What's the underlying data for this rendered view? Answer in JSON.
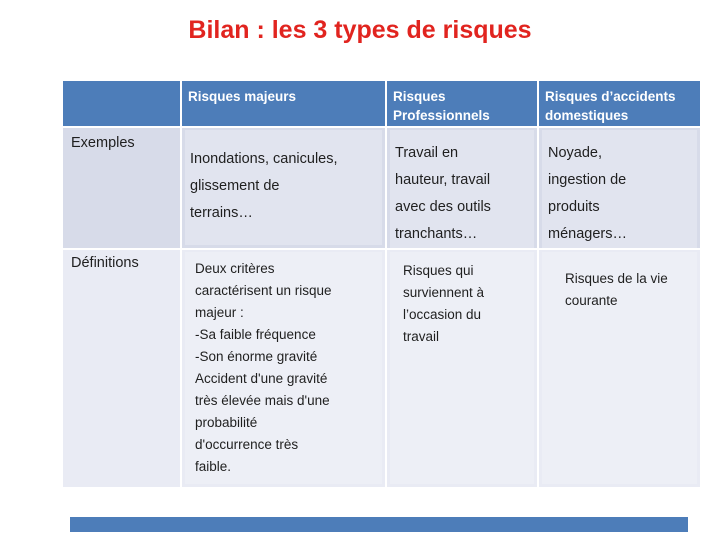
{
  "slide": {
    "title": "Bilan : les 3 types de risques",
    "title_color": "#e1241f",
    "accent_color": "#4d7db9",
    "band_color_dark": "#d7dbe9",
    "band_color_light": "#e9ebf4"
  },
  "table": {
    "header": {
      "empty": "",
      "majeurs": "Risques majeurs",
      "professionnels": "Risques\nProfessionnels",
      "domestiques": "Risques d’accidents\ndomestiques"
    },
    "rows": {
      "exemples": {
        "label": "Exemples",
        "majeurs": "Inondations, canicules,\nglissement de\nterrains…",
        "professionnels": "Travail en\nhauteur, travail\navec des outils\ntranchants…",
        "domestiques": "Noyade,\ningestion de\nproduits\nménagers…"
      },
      "definitions": {
        "label": "Définitions",
        "majeurs": "Deux critères\ncaractérisent un risque\nmajeur :\n-Sa faible fréquence\n-Son énorme gravité\nAccident d'une gravité\ntrès élevée mais d'une\nprobabilité\nd'occurrence très\nfaible.",
        "professionnels": "Risques qui\nsurviennent à\nl’occasion du\ntravail",
        "domestiques": "Risques de la vie\ncourante"
      }
    }
  }
}
